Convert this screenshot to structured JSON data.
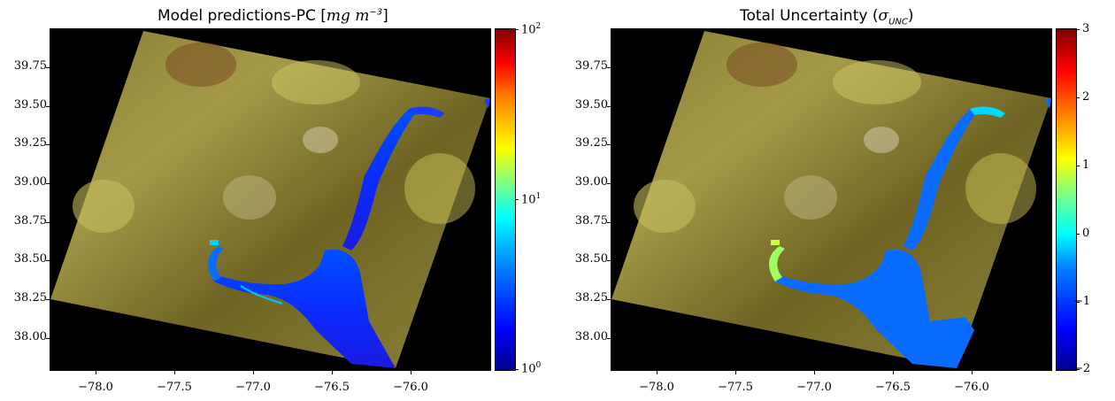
{
  "left_panel": {
    "title_prefix": "Model predictions-PC [",
    "title_math": "mg m",
    "title_sup": "−3",
    "title_suffix": "]",
    "colorbar_ticks": [
      {
        "base": "10",
        "exp": "2",
        "value": 100
      },
      {
        "base": "10",
        "exp": "1",
        "value": 10
      },
      {
        "base": "10",
        "exp": "0",
        "value": 1
      }
    ],
    "colorbar_scale": "log",
    "colormap": "jet"
  },
  "right_panel": {
    "title_prefix": "Total Uncertainty (",
    "title_math": "σ",
    "title_sub": "UNC",
    "title_suffix": ")",
    "colorbar_ticks": [
      "3",
      "2",
      "1",
      "0",
      "−1",
      "−2"
    ],
    "colorbar_range": [
      -2,
      3
    ],
    "colormap": "jet"
  },
  "axes": {
    "y_ticks": [
      "39.75",
      "39.50",
      "39.25",
      "39.00",
      "38.75",
      "38.50",
      "38.25",
      "38.00"
    ],
    "x_ticks": [
      "−78.0",
      "−77.5",
      "−77.0",
      "−76.5",
      "−76.0"
    ]
  },
  "colors": {
    "background": "#000000",
    "land": "#7a6e2a",
    "water_low": "#0a2cff",
    "water_mid": "#00b4ff"
  }
}
